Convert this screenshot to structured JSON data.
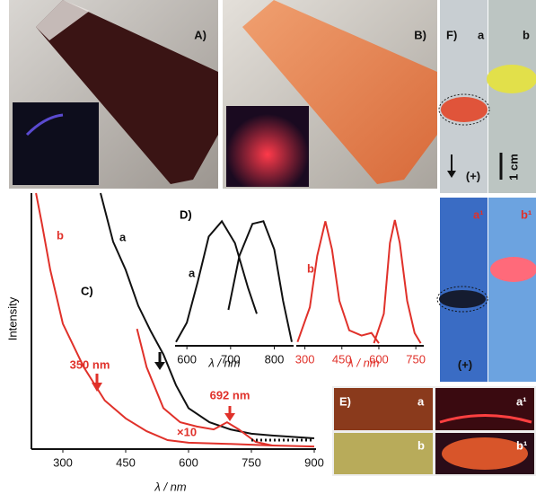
{
  "chart_data": [
    {
      "type": "line",
      "title": "C)",
      "x_label": "λ / nm",
      "y_label": "Intensity",
      "xlim": [
        225,
        900
      ],
      "ylim": [
        0,
        100
      ],
      "xticks": [
        300,
        450,
        600,
        750,
        900
      ],
      "annotations": [
        "350 nm",
        "692 nm"
      ],
      "series": [
        {
          "name": "a",
          "color": "#111111",
          "x": [
            390,
            420,
            450,
            480,
            510,
            540,
            570,
            600,
            650,
            700,
            750,
            800,
            900
          ],
          "values": [
            100,
            81,
            70,
            56,
            46,
            37,
            25,
            16,
            10.5,
            7.7,
            6,
            5.3,
            4.2
          ]
        },
        {
          "name": "b",
          "color": "#e0312a",
          "x": [
            236,
            250,
            270,
            300,
            350,
            400,
            450,
            500,
            550,
            600,
            700,
            800,
            900
          ],
          "values": [
            100,
            88,
            70,
            49,
            32,
            19,
            12,
            7,
            3.5,
            2.5,
            2,
            1.4,
            1
          ]
        },
        {
          "name": "×10",
          "color": "#e0312a",
          "x": [
            477,
            500,
            540,
            580,
            620,
            660,
            692,
            720,
            760,
            800
          ],
          "values": [
            47,
            32,
            16,
            10.5,
            8.8,
            7.7,
            10.5,
            7.7,
            2.8,
            1.4
          ]
        },
        {
          "color": "#111111",
          "dotted": true,
          "x": [
            750,
            900
          ],
          "values": [
            3.5,
            3.5
          ]
        }
      ]
    },
    {
      "type": "line",
      "title": "D)",
      "x_label": "λ / nm",
      "xlim": [
        573,
        840
      ],
      "ylim": [
        0,
        100
      ],
      "xticks": [
        600,
        700,
        800
      ],
      "series": [
        {
          "name": "a",
          "color": "#111111",
          "x": [
            575,
            600,
            625,
            650,
            680,
            710,
            740,
            760
          ],
          "values": [
            3,
            18,
            50,
            85,
            97,
            80,
            45,
            25
          ]
        },
        {
          "color": "#111111",
          "x": [
            695,
            720,
            750,
            775,
            800,
            820,
            840
          ],
          "values": [
            28,
            70,
            95,
            97,
            75,
            35,
            3
          ]
        }
      ]
    },
    {
      "type": "line",
      "x_label": "λ / nm",
      "xlim": [
        265,
        775
      ],
      "ylim": [
        0,
        100
      ],
      "xticks": [
        300,
        450,
        600,
        750
      ],
      "series": [
        {
          "name": "b",
          "color": "#e0312a",
          "x": [
            270,
            320,
            350,
            383,
            410,
            440,
            480,
            530,
            570,
            600
          ],
          "values": [
            3,
            30,
            70,
            97,
            75,
            35,
            12,
            8,
            10,
            2
          ]
        },
        {
          "color": "#e0312a",
          "x": [
            580,
            620,
            645,
            665,
            685,
            715,
            745,
            770
          ],
          "values": [
            2,
            25,
            80,
            98,
            80,
            35,
            10,
            2
          ]
        }
      ]
    }
  ],
  "panels": {
    "A": "A)",
    "B": "B)",
    "F": {
      "label": "F)",
      "a": "a",
      "b": "b",
      "scale": "1 cm",
      "plus_top": "(+)",
      "a1": "a¹",
      "b1": "b¹",
      "plus_bottom": "(+)"
    },
    "E": {
      "label": "E)",
      "a": "a",
      "a1": "a¹",
      "b": "b",
      "b1": "b¹"
    }
  }
}
